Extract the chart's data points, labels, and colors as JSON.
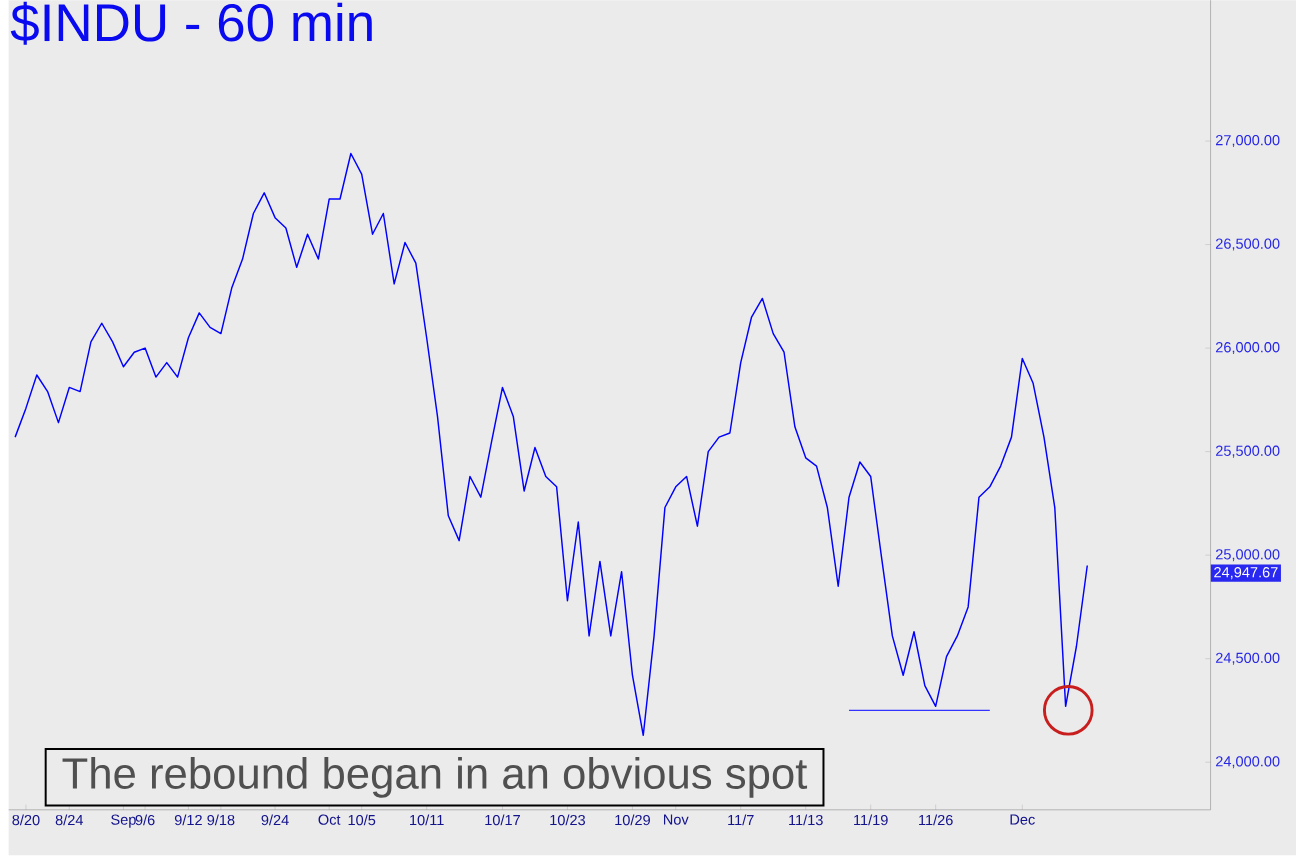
{
  "chart_data": {
    "type": "line",
    "title": "$INDU - 60 min",
    "annotations": [
      "The rebound began in an obvious spot",
      "24,947.67"
    ],
    "categories": [
      null,
      "8/20",
      null,
      null,
      null,
      "8/24",
      null,
      null,
      null,
      null,
      "Sep",
      null,
      "9/6",
      null,
      null,
      null,
      "9/12",
      null,
      null,
      "9/18",
      null,
      null,
      null,
      null,
      "9/24",
      null,
      null,
      null,
      null,
      "Oct",
      null,
      null,
      "10/5",
      null,
      null,
      null,
      null,
      null,
      "10/11",
      null,
      null,
      null,
      null,
      null,
      null,
      "10/17",
      null,
      null,
      null,
      null,
      null,
      "10/23",
      null,
      null,
      null,
      null,
      null,
      "10/29",
      null,
      null,
      null,
      "Nov",
      null,
      null,
      null,
      null,
      null,
      "11/7",
      null,
      null,
      null,
      null,
      null,
      "11/13",
      null,
      null,
      null,
      null,
      null,
      "11/19",
      null,
      null,
      null,
      null,
      null,
      "11/26",
      null,
      null,
      null,
      null,
      null,
      null,
      null,
      "Dec",
      null,
      null,
      null,
      null,
      null,
      null
    ],
    "series": [
      {
        "color": "#0000ff",
        "values": [
          25570,
          25710,
          25870,
          25790,
          25640,
          25810,
          25790,
          26030,
          26120,
          26030,
          25910,
          25980,
          26000,
          25860,
          25930,
          25860,
          26050,
          26170,
          26100,
          26070,
          26290,
          26430,
          26650,
          26750,
          26630,
          26580,
          26390,
          26550,
          26430,
          26720,
          26720,
          26940,
          26840,
          26550,
          26650,
          26310,
          26510,
          26410,
          26050,
          25670,
          25190,
          25070,
          25380,
          25280,
          25550,
          25810,
          25670,
          25310,
          25520,
          25380,
          25330,
          24780,
          25160,
          24610,
          24970,
          24610,
          24920,
          24420,
          24130,
          24610,
          25230,
          25330,
          25380,
          25140,
          25500,
          25570,
          25590,
          25930,
          26150,
          26240,
          26070,
          25980,
          25620,
          25470,
          25430,
          25230,
          24850,
          25280,
          25450,
          25380,
          24990,
          24610,
          24420,
          24630,
          24370,
          24270,
          24510,
          24610,
          24750,
          25280,
          25330,
          25430,
          25570,
          25950,
          25830,
          25570,
          25230,
          24270,
          24560,
          24950
        ]
      },
      {
        "type": "line",
        "color": "#3333ff",
        "values": [
          null,
          null,
          null,
          null,
          null,
          null,
          null,
          null,
          null,
          null,
          null,
          null,
          null,
          null,
          null,
          null,
          null,
          null,
          null,
          null,
          null,
          null,
          null,
          null,
          null,
          null,
          null,
          null,
          null,
          null,
          null,
          null,
          null,
          null,
          null,
          null,
          null,
          null,
          null,
          null,
          null,
          null,
          null,
          null,
          null,
          null,
          null,
          null,
          null,
          null,
          null,
          null,
          null,
          null,
          null,
          null,
          null,
          null,
          null,
          null,
          null,
          null,
          null,
          null,
          null,
          null,
          null,
          null,
          null,
          null,
          null,
          null,
          null,
          null,
          null,
          null,
          null,
          24250,
          24250,
          24250,
          24250,
          24250,
          24250,
          24250,
          24250,
          24250,
          24250,
          24250,
          24250,
          24250,
          24250,
          null,
          null,
          null,
          null,
          null,
          null,
          null,
          null,
          null
        ]
      }
    ],
    "ylim": [
      23770,
      27680
    ],
    "yticks": [
      {
        "value": 24000,
        "label": "24,000.00"
      },
      {
        "value": 24500,
        "label": "24,500.00"
      },
      {
        "value": 25000,
        "label": "25,000.00"
      },
      {
        "value": 25500,
        "label": "25,500.00"
      },
      {
        "value": 26000,
        "label": "26,000.00"
      },
      {
        "value": 26500,
        "label": "26,500.00"
      },
      {
        "value": 27000,
        "label": "27,000.00"
      }
    ],
    "marker": "none",
    "line_style": "solid"
  }
}
